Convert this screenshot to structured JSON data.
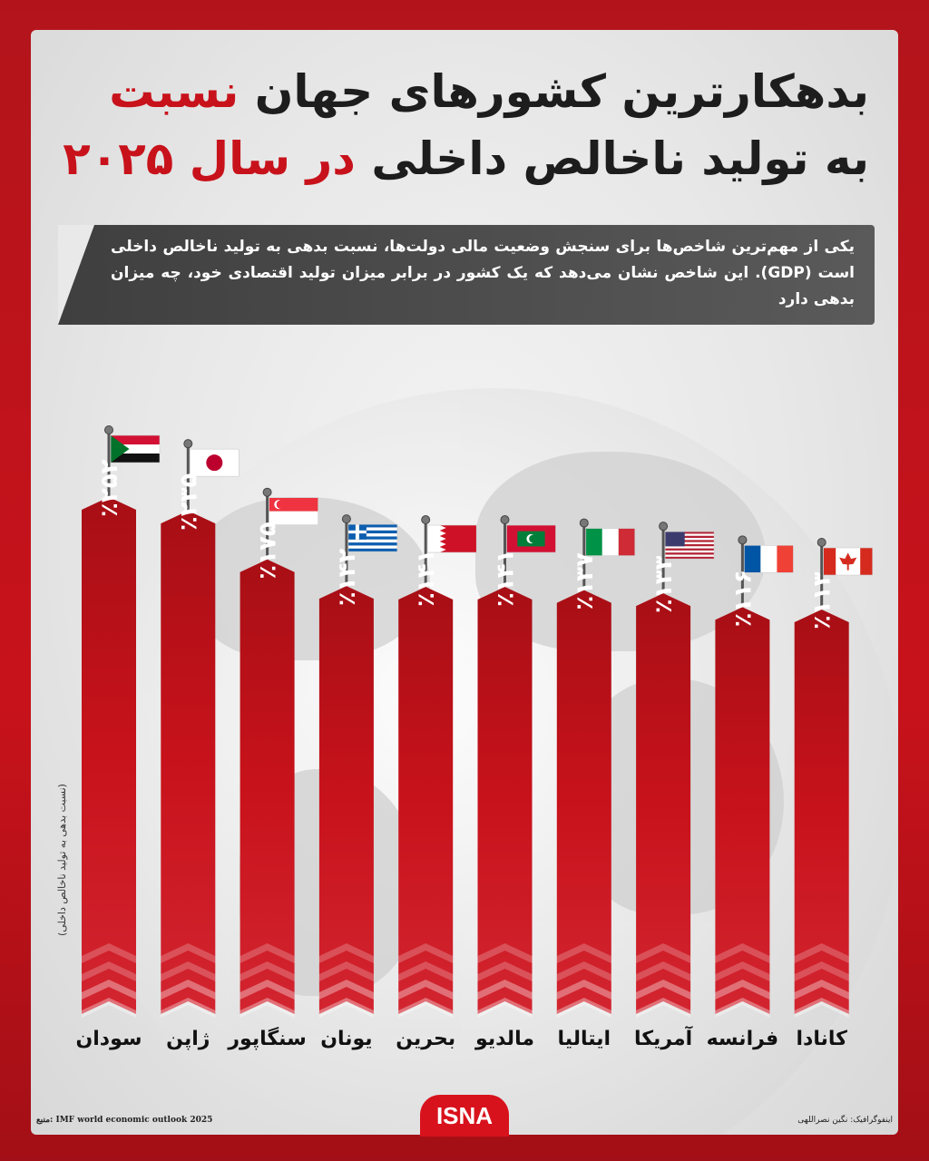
{
  "title": {
    "line1_black": "بدهکارترین کشورهای جهان",
    "line1_red": "نسبت",
    "line2_black": "به تولید ناخالص داخلی",
    "line2_red": "در سال ۲۰۲۵"
  },
  "description": "یکی از مهم‌ترین شاخص‌ها برای سنجش وضعیت مالی دولت‌ها، نسبت بدهی به تولید ناخالص داخلی است (GDP). این شاخص نشان می‌دهد که یک کشور در برابر میزان تولید اقتصادی خود، چه میزان بدهی دارد",
  "axis_label": "(نسبت بدهی به تولید ناخالص داخلی)",
  "footer": {
    "source": "منبع: IMF world economic outlook 2025",
    "credit": "اینفوگرافیک: نگین نصراللهی",
    "logo": "ISNA"
  },
  "chart_data": {
    "type": "bar",
    "categories": [
      "سودان",
      "ژاپن",
      "سنگاپور",
      "یونان",
      "بحرین",
      "مالدیو",
      "ایتالیا",
      "آمریکا",
      "فرانسه",
      "کانادا"
    ],
    "values": [
      252,
      235,
      175,
      142,
      141,
      141,
      137,
      133,
      116,
      113
    ],
    "value_labels": [
      "٪۲۵۲",
      "٪۲۳۵",
      "٪۱۷۵",
      "٪۱۴۲",
      "٪۱۴۱",
      "٪۱۴۱",
      "٪۱۳۷",
      "٪۱۳۳",
      "٪۱۱۶",
      "٪۱۱۳"
    ],
    "flags": [
      "sudan",
      "japan",
      "singapore",
      "greece",
      "bahrain",
      "maldives",
      "italy",
      "usa",
      "france",
      "canada"
    ],
    "bar_color": "#c8121b",
    "ylabel": "(نسبت بدهی به تولید ناخالص داخلی)"
  }
}
